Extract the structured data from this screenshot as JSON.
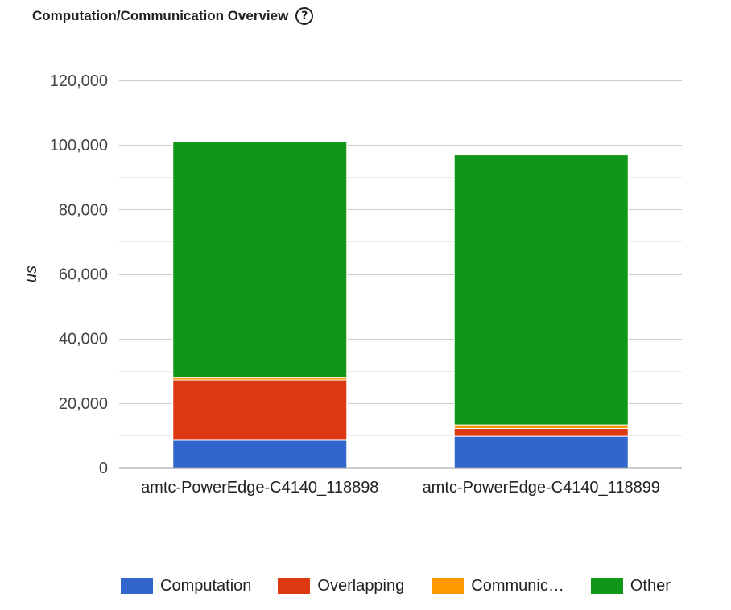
{
  "header": {
    "title": "Computation/Communication Overview",
    "help_icon": "question-circle-icon",
    "help_glyph": "?"
  },
  "chart_data": {
    "type": "bar",
    "stacked": true,
    "title": "Computation/Communication Overview",
    "xlabel": "",
    "ylabel": "us",
    "ylim": [
      0,
      120000
    ],
    "yticks": [
      0,
      20000,
      40000,
      60000,
      80000,
      100000,
      120000
    ],
    "ytick_labels": [
      "0",
      "20,000",
      "40,000",
      "60,000",
      "80,000",
      "100,000",
      "120,000"
    ],
    "minor_gridlines": true,
    "grid": true,
    "legend_position": "bottom",
    "categories": [
      "amtc-PowerEdge-C4140_118898",
      "amtc-PowerEdge-C4140_118899"
    ],
    "series": [
      {
        "name": "Computation",
        "legend_label": "Computation",
        "color": "#3366cc",
        "values": [
          8500,
          9700
        ]
      },
      {
        "name": "Overlapping",
        "legend_label": "Overlapping",
        "color": "#dc3912",
        "values": [
          18700,
          2400
        ]
      },
      {
        "name": "Communication",
        "legend_label": "Communic…",
        "color": "#ff9900",
        "values": [
          700,
          1100
        ]
      },
      {
        "name": "Other",
        "legend_label": "Other",
        "color": "#109618",
        "values": [
          73200,
          83700
        ]
      }
    ]
  }
}
